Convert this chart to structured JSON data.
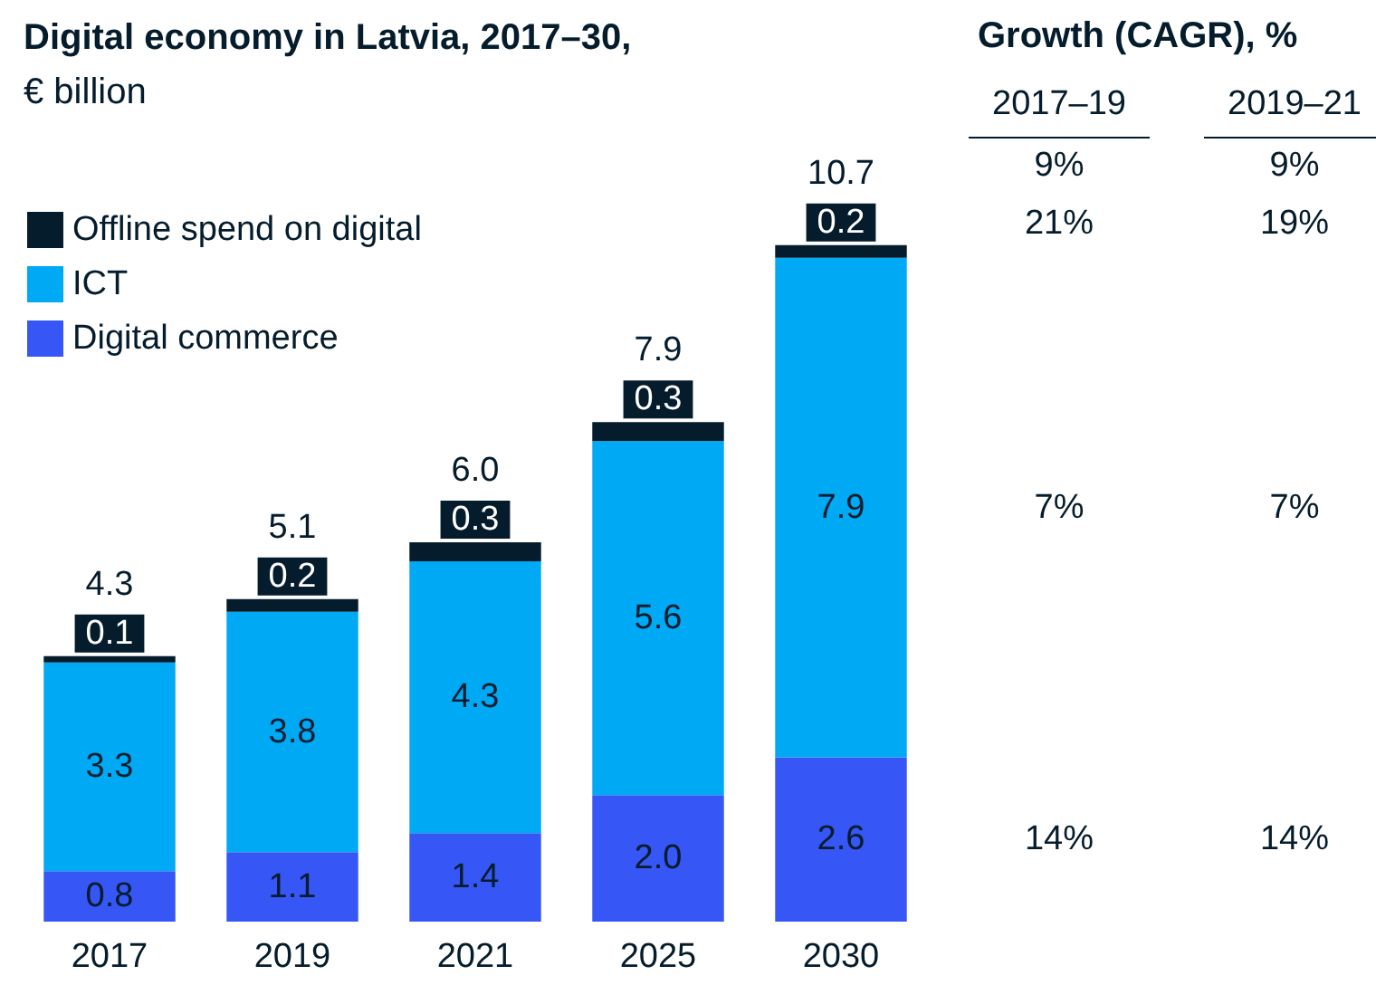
{
  "chart_data": {
    "type": "bar",
    "title": "Digital economy in Latvia, 2017–30,",
    "subtitle": "€ billion",
    "stacked": true,
    "data_labels": true,
    "legend": "top left",
    "categories": [
      "2017",
      "2019",
      "2021",
      "2025",
      "2030"
    ],
    "series": [
      {
        "name": "Digital commerce",
        "color": "#3657f5",
        "values": [
          0.8,
          1.1,
          1.4,
          2.0,
          2.6
        ],
        "value_labels": [
          "0.8",
          "1.1",
          "1.4",
          "2.0",
          "2.6"
        ]
      },
      {
        "name": "ICT",
        "color": "#00a9f4",
        "values": [
          3.3,
          3.8,
          4.3,
          5.6,
          7.9
        ]
      },
      {
        "name": "Offline spend on digital",
        "color": "#051c2c",
        "values": [
          0.1,
          0.2,
          0.3,
          0.3,
          0.2
        ]
      }
    ],
    "totals": [
      "4.3",
      "5.1",
      "6.0",
      "7.9",
      "10.7"
    ],
    "annotations": [
      "Growth (CAGR), %",
      "2017–19",
      "2019–21",
      "9%",
      "9%",
      "21%",
      "19%",
      "7%",
      "7%",
      "14%",
      "14%"
    ]
  }
}
